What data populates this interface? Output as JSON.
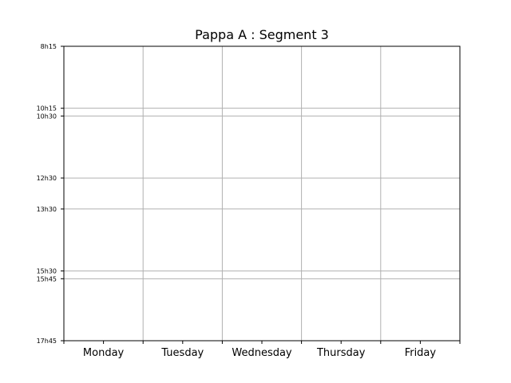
{
  "chart_data": {
    "type": "table",
    "title": "Pappa A : Segment 3",
    "xlabel": "",
    "ylabel": "",
    "categories": [
      "Monday",
      "Tuesday",
      "Wednesday",
      "Thursday",
      "Friday"
    ],
    "y_ticks": [
      {
        "label": "8h15",
        "value": 8.25
      },
      {
        "label": "10h15",
        "value": 10.25
      },
      {
        "label": "10h30",
        "value": 10.5
      },
      {
        "label": "12h30",
        "value": 12.5
      },
      {
        "label": "13h30",
        "value": 13.5
      },
      {
        "label": "15h30",
        "value": 15.5
      },
      {
        "label": "15h45",
        "value": 15.75
      },
      {
        "label": "17h45",
        "value": 17.75
      }
    ],
    "ylim": [
      8.25,
      17.75
    ],
    "y_inverted": true,
    "grid": true,
    "grid_color": "#b0b0b0",
    "axis_color": "#000000",
    "background": "#ffffff"
  }
}
